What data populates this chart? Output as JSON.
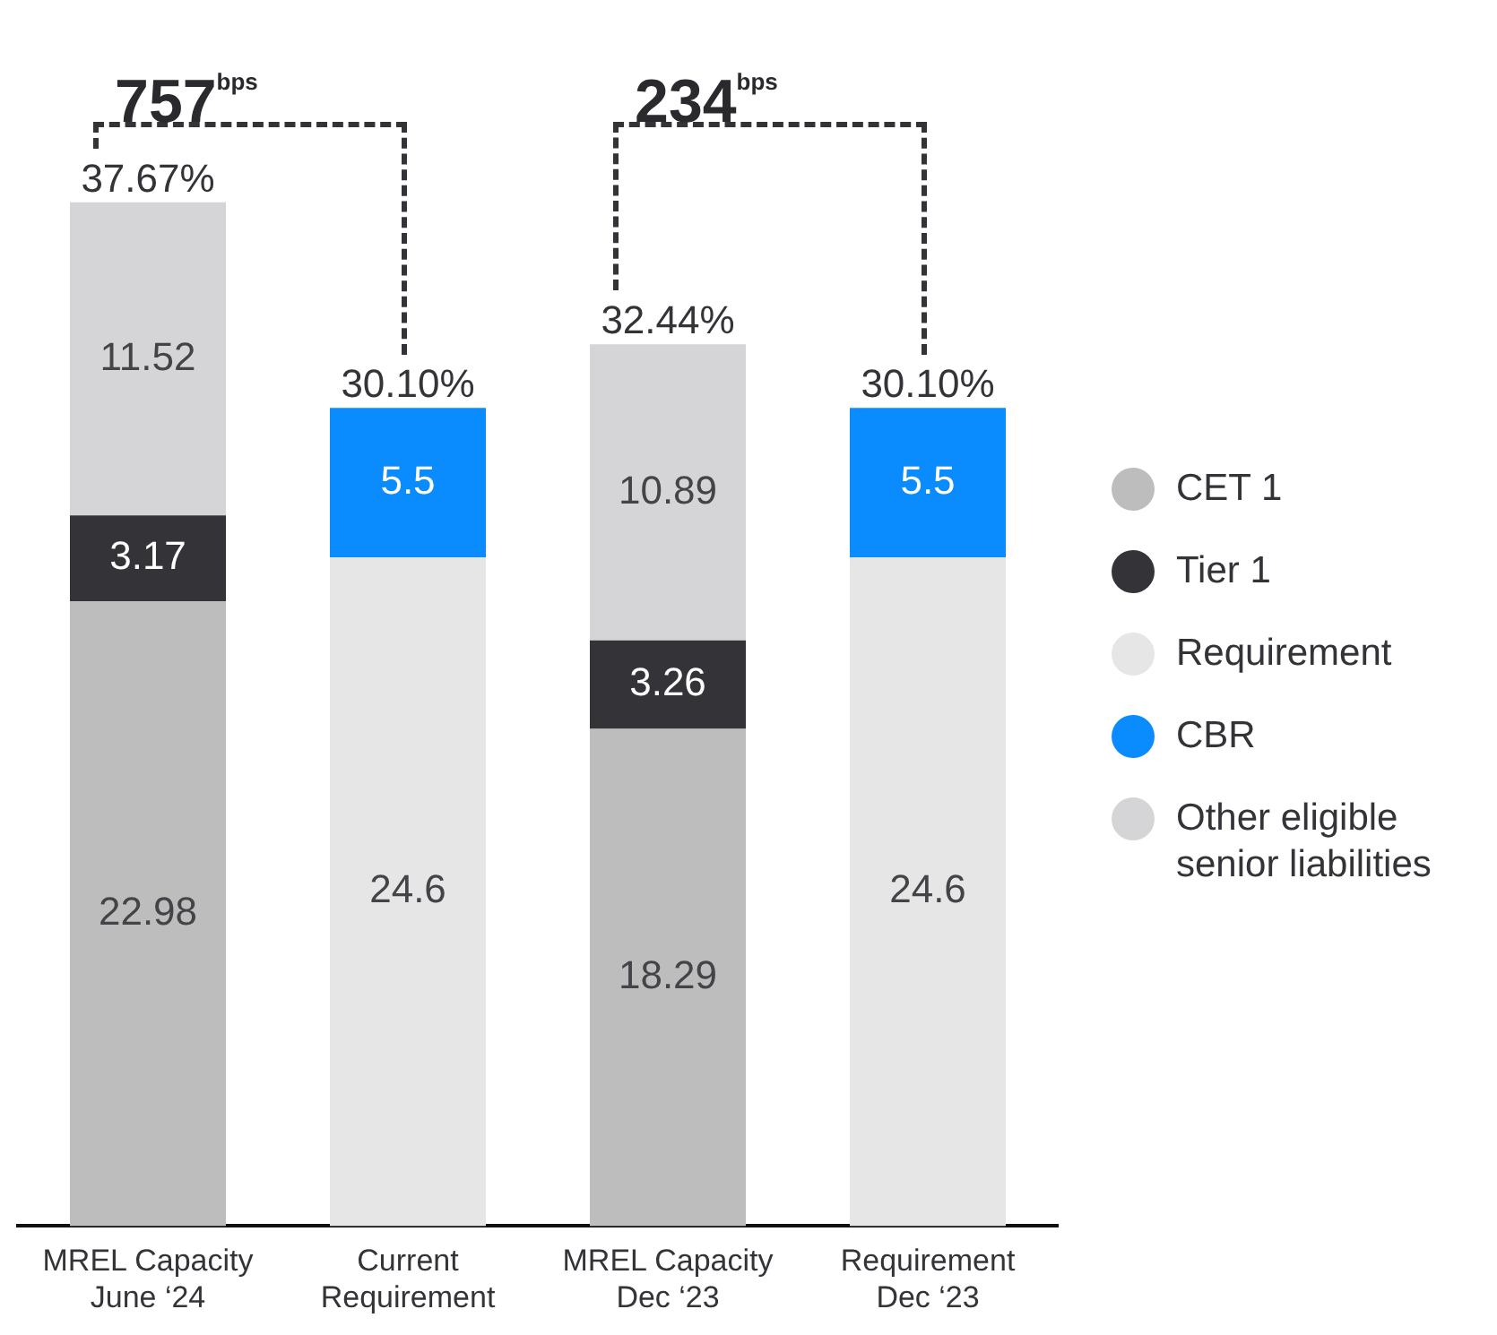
{
  "chart_data": {
    "type": "bar",
    "stacked": true,
    "categories": [
      "MREL Capacity June ‘24",
      "Current Requirement",
      "MREL Capacity Dec ‘23",
      "Requirement Dec ‘23"
    ],
    "series": [
      {
        "name": "CET 1",
        "color": "#bdbdbd",
        "values": [
          22.98,
          null,
          18.29,
          null
        ]
      },
      {
        "name": "Tier 1",
        "color": "#333338",
        "values": [
          3.17,
          null,
          3.26,
          null
        ]
      },
      {
        "name": "Requirement",
        "color": "#e6e6e6",
        "values": [
          null,
          24.6,
          null,
          24.6
        ]
      },
      {
        "name": "CBR",
        "color": "#0a8cff",
        "values": [
          null,
          5.5,
          null,
          5.5
        ]
      },
      {
        "name": "Other eligible senior liabilities",
        "color": "#d5d5d7",
        "values": [
          11.52,
          null,
          10.89,
          null
        ]
      }
    ],
    "totals": [
      "37.67%",
      "30.10%",
      "32.44%",
      "30.10%"
    ],
    "data_labels": true,
    "annotations": [
      "757$^{bps}$",
      "234$^{bps}$"
    ],
    "legend": "right",
    "grid": false
  }
}
